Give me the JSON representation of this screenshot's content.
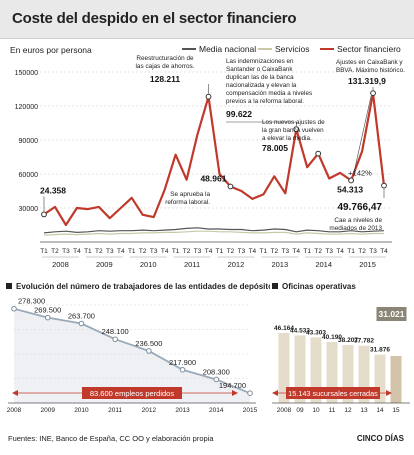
{
  "title": "Coste del despido en el sector financiero",
  "main_chart": {
    "subtitle": "En euros por persona",
    "legend": [
      {
        "label": "Media nacional",
        "color": "#555555"
      },
      {
        "label": "Servicios",
        "color": "#c9c9a8"
      },
      {
        "label": "Sector financiero",
        "color": "#c0392b"
      }
    ],
    "y_ticks": [
      "150000",
      "120000",
      "90000",
      "60000",
      "30000",
      "0"
    ],
    "quarter_labels": [
      "T1",
      "T2",
      "T3",
      "T4"
    ],
    "years": [
      "2008",
      "2009",
      "2010",
      "2011",
      "2012",
      "2013",
      "2014",
      "2015"
    ],
    "annotations": [
      {
        "value": "24.358",
        "text": ""
      },
      {
        "value": "128.211",
        "text": "Reestructuración de las cajas de ahorros."
      },
      {
        "value": "48.961",
        "text": "Se aprueba la reforma laboral."
      },
      {
        "value": "99.622",
        "text": "Las indemnizaciones en Santander o CaixaBank duplican las de la banca nacionalizada y elevan la compensación media a niveles previos a la reforma laboral."
      },
      {
        "value": "78.005",
        "text": "Los nuevos ajustes de la gran banca vuelven a elevar la media."
      },
      {
        "value": "54.313",
        "text": ""
      },
      {
        "value": "131.319,9",
        "text": "Ajustes en CaixaBank y BBVA. Máximo histórico."
      },
      {
        "value": "+142%",
        "text": ""
      },
      {
        "value": "49.766,47",
        "text": "Cae a niveles de mediados de 2013"
      }
    ]
  },
  "employees_chart": {
    "title": "Evolución del número de trabajadores de las entidades de depósito",
    "callout": "83.600 empleos perdidos"
  },
  "offices_chart": {
    "title": "Oficinas operativas",
    "callout": "15.143 sucursales cerradas",
    "highlight": "31.021"
  },
  "footer": {
    "sources": "Fuentes: INE, Banco de España, CC OO y elaboración propia",
    "brand": "CINCO DÍAS"
  },
  "chart_data": [
    {
      "type": "line",
      "title": "Coste del despido en el sector financiero",
      "ylabel": "En euros por persona",
      "ylim": [
        0,
        150000
      ],
      "x": [
        "2008-T1",
        "2008-T2",
        "2008-T3",
        "2008-T4",
        "2009-T1",
        "2009-T2",
        "2009-T3",
        "2009-T4",
        "2010-T1",
        "2010-T2",
        "2010-T3",
        "2010-T4",
        "2011-T1",
        "2011-T2",
        "2011-T3",
        "2011-T4",
        "2012-T1",
        "2012-T2",
        "2012-T3",
        "2012-T4",
        "2013-T1",
        "2013-T2",
        "2013-T3",
        "2013-T4",
        "2014-T1",
        "2014-T2",
        "2014-T3",
        "2014-T4",
        "2015-T1",
        "2015-T2",
        "2015-T3",
        "2015-T4"
      ],
      "series": [
        {
          "name": "Media nacional",
          "color": "#555555",
          "values": [
            8000,
            9000,
            9500,
            8500,
            9000,
            10000,
            9500,
            10000,
            10000,
            10500,
            10000,
            10500,
            11000,
            12000,
            12500,
            11500,
            11500,
            11000,
            11000,
            10000,
            10500,
            11500,
            11000,
            9000,
            10500,
            10000,
            9000,
            9000,
            10000,
            9000,
            9500,
            10000
          ]
        },
        {
          "name": "Servicios",
          "color": "#c9c9a8",
          "values": [
            6000,
            6500,
            7000,
            6500,
            7000,
            7500,
            7000,
            7500,
            7500,
            8000,
            8000,
            8500,
            8500,
            9000,
            9500,
            9500,
            9000,
            9000,
            8500,
            8000,
            8000,
            8500,
            8500,
            7000,
            8000,
            7500,
            7000,
            7000,
            7500,
            7000,
            7500,
            7500
          ]
        },
        {
          "name": "Sector financiero",
          "color": "#c0392b",
          "values": [
            24358,
            31000,
            15000,
            30000,
            29000,
            31000,
            21000,
            30000,
            39000,
            24000,
            22000,
            46000,
            77000,
            55000,
            95000,
            128211,
            60000,
            48961,
            45000,
            38000,
            42000,
            58000,
            43000,
            99622,
            66000,
            78005,
            56000,
            61000,
            54313,
            80000,
            131319.9,
            49766.47
          ]
        }
      ]
    },
    {
      "type": "line",
      "title": "Evolución del número de trabajadores de las entidades de depósito",
      "x": [
        "2008",
        "2009",
        "2010",
        "2011",
        "2012",
        "2013",
        "2014",
        "2015"
      ],
      "series": [
        {
          "name": "",
          "color": "#9ab",
          "values": [
            278300,
            269500,
            263700,
            248100,
            236500,
            217900,
            208300,
            194700
          ]
        }
      ]
    },
    {
      "type": "bar",
      "title": "Oficinas operativas",
      "categories": [
        "2008",
        "09",
        "10",
        "11",
        "12",
        "13",
        "14",
        "15"
      ],
      "values": [
        46164,
        44533,
        43303,
        40190,
        38207,
        37782,
        31876,
        31021
      ]
    }
  ]
}
